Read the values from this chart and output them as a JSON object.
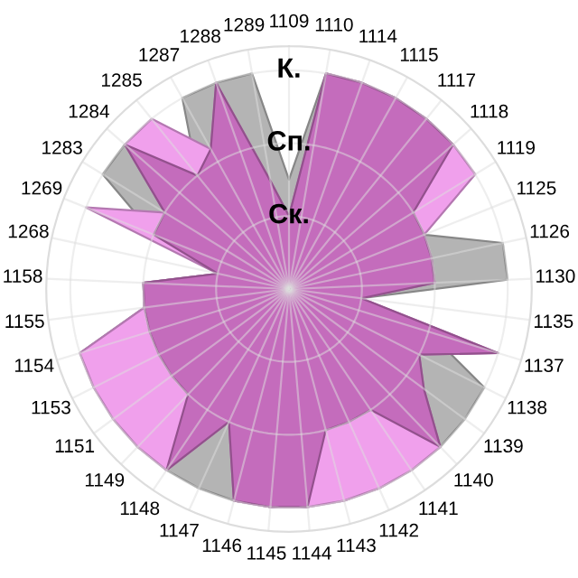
{
  "chart_data": {
    "type": "radar",
    "categories": [
      "1109",
      "1110",
      "1114",
      "1115",
      "1117",
      "1118",
      "1119",
      "1125",
      "1126",
      "1130",
      "1135",
      "1137",
      "1138",
      "1139",
      "1140",
      "1141",
      "1142",
      "1143",
      "1144",
      "1145",
      "1146",
      "1147",
      "1148",
      "1149",
      "1151",
      "1153",
      "1154",
      "1155",
      "1158",
      "1268",
      "1269",
      "1283",
      "1284",
      "1285",
      "1287",
      "1288",
      "1289"
    ],
    "ylim": [
      0,
      3.33
    ],
    "yticks": [
      {
        "value": 1,
        "label": "Ск."
      },
      {
        "value": 2,
        "label": "Сп."
      },
      {
        "value": 3,
        "label": "К."
      }
    ],
    "grid": true,
    "series": [
      {
        "color": "#b4b4b4",
        "values": [
          1.5,
          3,
          3,
          3,
          3,
          3,
          2,
          2,
          3,
          3,
          1,
          2,
          3,
          3,
          3,
          3,
          3,
          3,
          3,
          3,
          3,
          3,
          3,
          3,
          3,
          3,
          3,
          2,
          2,
          1,
          2,
          3,
          3,
          2,
          3,
          3,
          3
        ]
      },
      {
        "color": "#f0a0ec",
        "values": [
          1,
          3,
          3,
          3,
          3,
          3,
          3,
          2,
          2,
          2,
          1,
          3,
          2,
          2.3,
          3,
          3,
          3,
          3,
          3,
          3,
          3,
          2,
          3,
          3,
          3,
          3,
          3,
          2,
          2,
          1,
          3,
          2,
          3,
          3,
          2.2,
          3,
          1.5
        ]
      },
      {
        "color": "#c46cbc",
        "values": [
          1,
          3,
          3,
          3,
          3,
          3,
          2,
          2,
          2,
          2,
          1,
          3,
          2,
          2.3,
          3,
          2,
          2,
          2,
          3,
          3,
          3,
          2,
          3,
          2,
          2,
          2,
          2,
          2,
          2,
          1,
          2,
          2,
          3,
          2,
          2.2,
          3,
          1.5
        ]
      }
    ]
  }
}
